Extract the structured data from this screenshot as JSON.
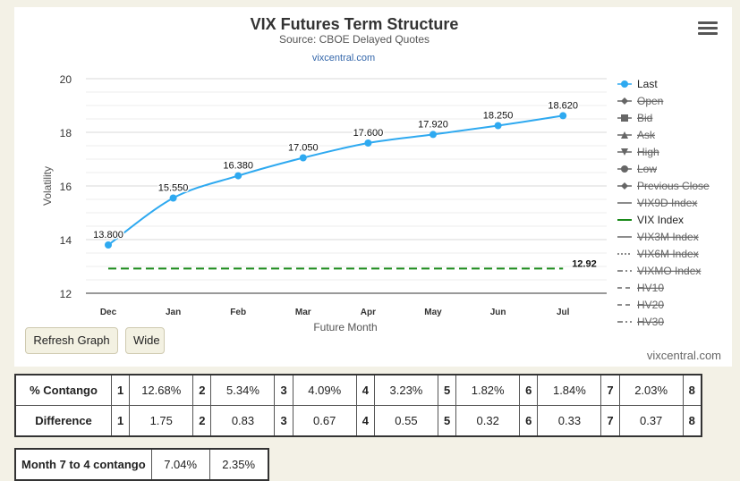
{
  "chart_data": {
    "type": "line",
    "title": "VIX Futures Term Structure",
    "subtitle": "Source: CBOE Delayed Quotes",
    "credit_link": "vixcentral.com",
    "watermark": "vixcentral.com",
    "xlabel": "Future Month",
    "ylabel": "Volatility",
    "categories": [
      "Dec",
      "Jan",
      "Feb",
      "Mar",
      "Apr",
      "May",
      "Jun",
      "Jul"
    ],
    "ylim": [
      12,
      20
    ],
    "yticks": [
      12,
      14,
      16,
      18,
      20
    ],
    "grid": true,
    "legend_position": "right",
    "series": [
      {
        "name": "Last",
        "color": "#2ea9f0",
        "values": [
          13.8,
          15.55,
          16.38,
          17.05,
          17.6,
          17.92,
          18.25,
          18.62
        ],
        "labels": [
          "13.800",
          "15.550",
          "16.380",
          "17.050",
          "17.600",
          "17.920",
          "18.250",
          "18.620"
        ]
      },
      {
        "name": "VIX Index",
        "color": "#1a8a1a",
        "style": "dashed",
        "value": 12.92,
        "label": "12.92"
      }
    ],
    "legend": [
      {
        "name": "Last",
        "marker": "circle",
        "line": "solid",
        "color": "#2ea9f0",
        "hidden": false
      },
      {
        "name": "Open",
        "marker": "diamond",
        "line": "solid",
        "color": "#666666",
        "hidden": true
      },
      {
        "name": "Bid",
        "marker": "square",
        "line": "solid",
        "color": "#666666",
        "hidden": true
      },
      {
        "name": "Ask",
        "marker": "triangle",
        "line": "solid",
        "color": "#666666",
        "hidden": true
      },
      {
        "name": "High",
        "marker": "triangle-down",
        "line": "solid",
        "color": "#666666",
        "hidden": true
      },
      {
        "name": "Low",
        "marker": "circle",
        "line": "solid",
        "color": "#666666",
        "hidden": true
      },
      {
        "name": "Previous Close",
        "marker": "diamond",
        "line": "solid",
        "color": "#666666",
        "hidden": true
      },
      {
        "name": "VIX9D Index",
        "marker": "none",
        "line": "solid",
        "color": "#666666",
        "hidden": true
      },
      {
        "name": "VIX Index",
        "marker": "none",
        "line": "solid",
        "color": "#1a8a1a",
        "hidden": false
      },
      {
        "name": "VIX3M Index",
        "marker": "none",
        "line": "solid",
        "color": "#666666",
        "hidden": true
      },
      {
        "name": "VIX6M Index",
        "marker": "none",
        "line": "dotted",
        "color": "#666666",
        "hidden": true
      },
      {
        "name": "VIXMO Index",
        "marker": "none",
        "line": "dashdot",
        "color": "#666666",
        "hidden": true
      },
      {
        "name": "HV10",
        "marker": "none",
        "line": "dashed",
        "color": "#666666",
        "hidden": true
      },
      {
        "name": "HV20",
        "marker": "none",
        "line": "dashed",
        "color": "#666666",
        "hidden": true
      },
      {
        "name": "HV30",
        "marker": "none",
        "line": "dashdot",
        "color": "#666666",
        "hidden": true
      }
    ]
  },
  "buttons": {
    "refresh": "Refresh Graph",
    "wide": "Wide"
  },
  "contango_table": {
    "rows": [
      {
        "label": "% Contango",
        "cells": [
          "1",
          "12.68%",
          "2",
          "5.34%",
          "3",
          "4.09%",
          "4",
          "3.23%",
          "5",
          "1.82%",
          "6",
          "1.84%",
          "7",
          "2.03%",
          "8"
        ]
      },
      {
        "label": "Difference",
        "cells": [
          "1",
          "1.75",
          "2",
          "0.83",
          "3",
          "0.67",
          "4",
          "0.55",
          "5",
          "0.32",
          "6",
          "0.33",
          "7",
          "0.37",
          "8"
        ]
      }
    ]
  },
  "summary_table": {
    "label": "Month 7 to 4 contango",
    "values": [
      "7.04%",
      "2.35%"
    ]
  }
}
